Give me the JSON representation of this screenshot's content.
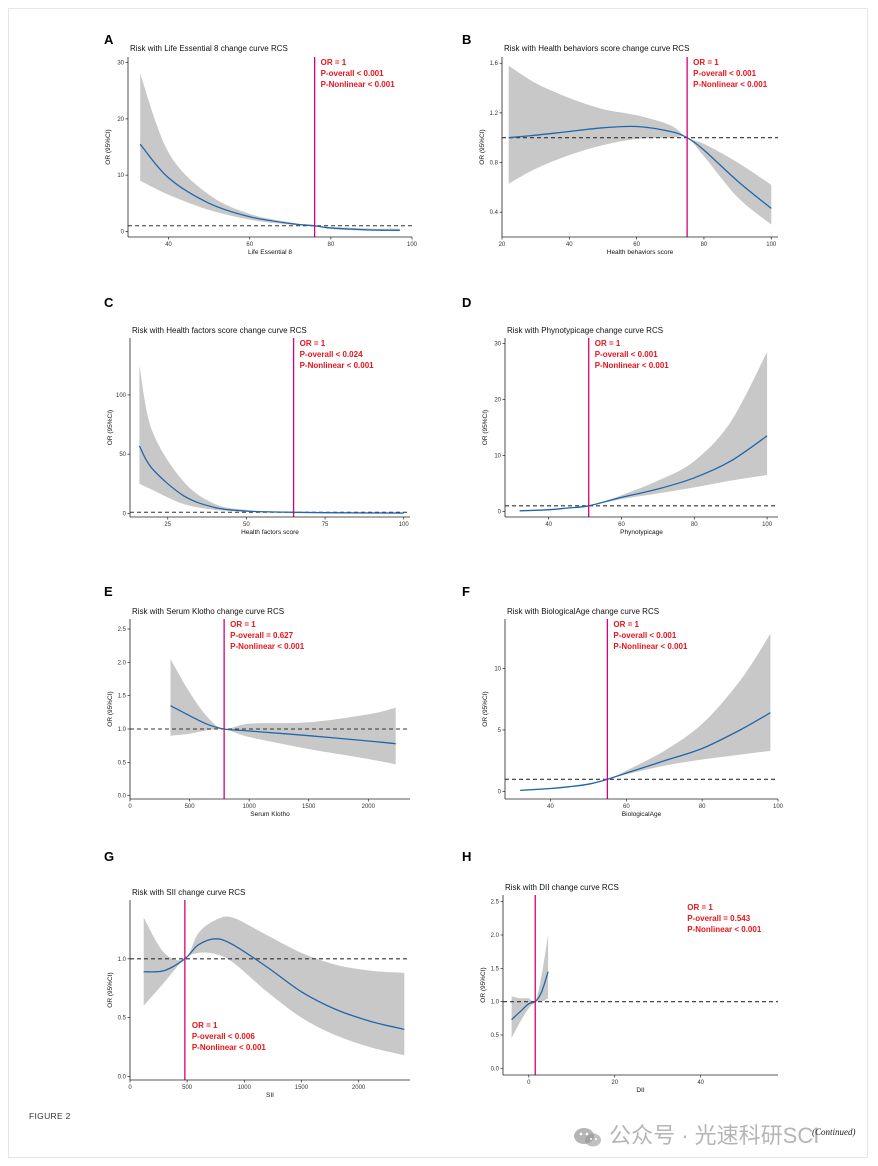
{
  "figure_label": "FIGURE 2",
  "continued": "(Continued)",
  "watermark": "公众号 · 光速科研SCI",
  "colors": {
    "curve": "#2166ac",
    "band": "#c8c8c8",
    "vline": "#d6007a",
    "stat": "#e8141b"
  },
  "chart_data": [
    {
      "panel": "A",
      "type": "line",
      "title": "Risk with Life Essential 8 change curve RCS",
      "xlabel": "Life Essential 8",
      "ylabel": "OR (95%CI)",
      "xlim": [
        30,
        100
      ],
      "ylim": [
        -1,
        31
      ],
      "xticks": [
        40,
        60,
        80,
        100
      ],
      "yticks": [
        0,
        10,
        20,
        30
      ],
      "ref_x": 76,
      "ref_y": 1,
      "stats": [
        "OR = 1",
        "P-overall < 0.001",
        "P-Nonlinear < 0.001"
      ],
      "stats_pos": "top-right",
      "x": [
        33,
        40,
        50,
        60,
        70,
        76,
        80,
        90,
        97
      ],
      "y": [
        15.5,
        9.5,
        5,
        2.6,
        1.4,
        1.0,
        0.6,
        0.25,
        0.2
      ],
      "lo": [
        9,
        6.5,
        3.8,
        2.1,
        1.2,
        1.0,
        0.4,
        0.1,
        0.05
      ],
      "hi": [
        28,
        14,
        6.5,
        3.1,
        1.6,
        1.0,
        0.8,
        0.5,
        0.5
      ]
    },
    {
      "panel": "B",
      "type": "line",
      "title": "Risk with Health behaviors score change curve RCS",
      "xlabel": "Health behaviors score",
      "ylabel": "OR (95%CI)",
      "xlim": [
        20,
        102
      ],
      "ylim": [
        0.2,
        1.65
      ],
      "xticks": [
        20,
        40,
        60,
        80,
        100
      ],
      "yticks": [
        0.4,
        0.8,
        1.2,
        1.6
      ],
      "ref_x": 75,
      "ref_y": 1,
      "stats": [
        "OR = 1",
        "P-overall < 0.001",
        "P-Nonlinear < 0.001"
      ],
      "stats_pos": "top-right",
      "x": [
        22,
        30,
        40,
        50,
        60,
        70,
        75,
        80,
        90,
        100
      ],
      "y": [
        1.0,
        1.02,
        1.05,
        1.08,
        1.09,
        1.05,
        1.0,
        0.9,
        0.65,
        0.43
      ],
      "lo": [
        0.63,
        0.75,
        0.86,
        0.94,
        0.99,
        1.0,
        1.0,
        0.85,
        0.52,
        0.3
      ],
      "hi": [
        1.58,
        1.44,
        1.32,
        1.23,
        1.18,
        1.1,
        1.0,
        0.95,
        0.8,
        0.62
      ]
    },
    {
      "panel": "C",
      "type": "line",
      "title": "Risk with Health factors score change curve RCS",
      "xlabel": "Health factors score",
      "ylabel": "OR (95%CI)",
      "xlim": [
        13,
        102
      ],
      "ylim": [
        -3,
        148
      ],
      "xticks": [
        25,
        50,
        75,
        100
      ],
      "yticks": [
        0,
        50,
        100
      ],
      "ref_x": 65,
      "ref_y": 1,
      "stats": [
        "OR = 1",
        "P-overall < 0.024",
        "P-Nonlinear < 0.001"
      ],
      "stats_pos": "top-right",
      "x": [
        16,
        20,
        30,
        40,
        50,
        60,
        65,
        75,
        90,
        100
      ],
      "y": [
        57,
        38,
        15,
        5,
        2,
        1.2,
        1,
        0.6,
        0.4,
        0.3
      ],
      "lo": [
        25,
        20,
        8,
        3,
        1.5,
        1,
        1,
        0.3,
        0.1,
        0.05
      ],
      "hi": [
        125,
        70,
        27,
        8,
        3,
        1.4,
        1,
        1,
        1,
        1
      ]
    },
    {
      "panel": "D",
      "type": "line",
      "title": "Risk with Phynotypicage change curve RCS",
      "xlabel": "Phynotypicage",
      "ylabel": "OR (95%CI)",
      "xlim": [
        28,
        103
      ],
      "ylim": [
        -1,
        31
      ],
      "xticks": [
        40,
        60,
        80,
        100
      ],
      "yticks": [
        0,
        10,
        20,
        30
      ],
      "ref_x": 51,
      "ref_y": 1,
      "stats": [
        "OR = 1",
        "P-overall < 0.001",
        "P-Nonlinear < 0.001"
      ],
      "stats_pos": "top-center",
      "x": [
        32,
        40,
        45,
        51,
        60,
        70,
        80,
        90,
        100
      ],
      "y": [
        0.1,
        0.3,
        0.6,
        1,
        2.5,
        4,
        6,
        9,
        13.5
      ],
      "lo": [
        0.05,
        0.2,
        0.5,
        1,
        2.2,
        3.2,
        4.3,
        5.5,
        6.5
      ],
      "hi": [
        0.2,
        0.4,
        0.7,
        1,
        2.9,
        5.5,
        9,
        16,
        28.5
      ]
    },
    {
      "panel": "E",
      "type": "line",
      "title": "Risk with Serum Klotho change curve RCS",
      "xlabel": "Serum Klotho",
      "ylabel": "OR (95%CI)",
      "xlim": [
        0,
        2350
      ],
      "ylim": [
        -0.05,
        2.65
      ],
      "xticks": [
        0,
        500,
        1000,
        1500,
        2000
      ],
      "yticks": [
        0.0,
        0.5,
        1.0,
        1.5,
        2.0,
        2.5
      ],
      "ref_x": 790,
      "ref_y": 1,
      "stats": [
        "OR = 1",
        "P-overall = 0.627",
        "P-Nonlinear < 0.001"
      ],
      "stats_pos": "top-left",
      "x": [
        340,
        500,
        650,
        790,
        1000,
        1500,
        2000,
        2230
      ],
      "y": [
        1.35,
        1.2,
        1.07,
        1.0,
        0.97,
        0.9,
        0.82,
        0.78
      ],
      "lo": [
        0.9,
        0.93,
        0.98,
        1.0,
        0.88,
        0.7,
        0.55,
        0.47
      ],
      "hi": [
        2.05,
        1.55,
        1.18,
        1.0,
        1.08,
        1.1,
        1.22,
        1.32
      ]
    },
    {
      "panel": "F",
      "type": "line",
      "title": "Risk with BiologicalAge change curve RCS",
      "xlabel": "BiologicalAge",
      "ylabel": "OR (95%CI)",
      "xlim": [
        28,
        100
      ],
      "ylim": [
        -0.6,
        14
      ],
      "xticks": [
        40,
        60,
        80,
        100
      ],
      "yticks": [
        0,
        5,
        10
      ],
      "ref_x": 55,
      "ref_y": 1,
      "stats": [
        "OR = 1",
        "P-overall < 0.001",
        "P-Nonlinear < 0.001"
      ],
      "stats_pos": "top-center",
      "x": [
        32,
        40,
        45,
        50,
        55,
        60,
        70,
        80,
        90,
        98
      ],
      "y": [
        0.1,
        0.25,
        0.4,
        0.6,
        1,
        1.5,
        2.5,
        3.5,
        5,
        6.4
      ],
      "lo": [
        0.05,
        0.2,
        0.35,
        0.55,
        1,
        1.4,
        2.1,
        2.6,
        3,
        3.3
      ],
      "hi": [
        0.15,
        0.3,
        0.45,
        0.65,
        1,
        1.7,
        3.3,
        5.5,
        9,
        12.8
      ]
    },
    {
      "panel": "G",
      "type": "line",
      "title": "Risk with SII change curve RCS",
      "xlabel": "SII",
      "ylabel": "OR (95%CI)",
      "xlim": [
        0,
        2450
      ],
      "ylim": [
        -0.03,
        1.5
      ],
      "xticks": [
        0,
        500,
        1000,
        1500,
        2000
      ],
      "yticks": [
        0.0,
        0.5,
        1.0
      ],
      "ref_x": 480,
      "ref_y": 1,
      "stats": [
        "OR = 1",
        "P-overall < 0.006",
        "P-Nonlinear < 0.001"
      ],
      "stats_pos": "bottom-left",
      "x": [
        120,
        300,
        480,
        600,
        750,
        900,
        1200,
        1500,
        1800,
        2100,
        2400
      ],
      "y": [
        0.89,
        0.9,
        1.0,
        1.12,
        1.17,
        1.12,
        0.93,
        0.72,
        0.57,
        0.47,
        0.4
      ],
      "lo": [
        0.6,
        0.8,
        1.0,
        1.05,
        1.04,
        0.97,
        0.72,
        0.5,
        0.35,
        0.25,
        0.18
      ],
      "hi": [
        1.35,
        1.05,
        1.0,
        1.22,
        1.33,
        1.35,
        1.2,
        1.05,
        0.95,
        0.9,
        0.88
      ]
    },
    {
      "panel": "H",
      "type": "line",
      "title": "Risk with DII change curve RCS",
      "xlabel": "DII",
      "ylabel": "OR (95%CI)",
      "xlim": [
        -6,
        58
      ],
      "ylim": [
        -0.1,
        2.6
      ],
      "xticks": [
        0,
        20,
        40
      ],
      "yticks": [
        0.0,
        0.5,
        1.0,
        1.5,
        2.0,
        2.5
      ],
      "ref_x": 1.5,
      "ref_y": 1,
      "stats": [
        "OR = 1",
        "P-overall = 0.543",
        "P-Nonlinear < 0.001"
      ],
      "stats_pos": "top-right",
      "x": [
        -4,
        -2,
        0,
        1.5,
        3,
        4.5
      ],
      "y": [
        0.73,
        0.85,
        0.97,
        1.0,
        1.15,
        1.45
      ],
      "lo": [
        0.45,
        0.7,
        0.9,
        1.0,
        1.0,
        1.05
      ],
      "hi": [
        1.08,
        1.05,
        1.05,
        1.0,
        1.4,
        2.0
      ]
    }
  ]
}
